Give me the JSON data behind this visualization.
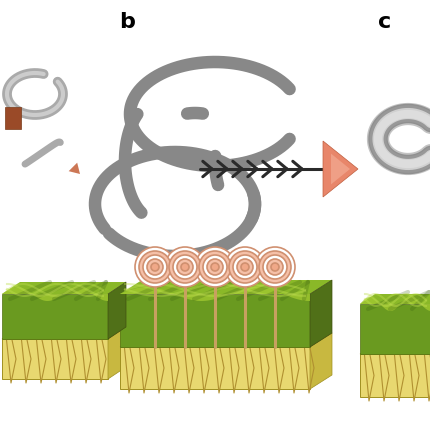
{
  "background_color": "#ffffff",
  "gray_tube_color": "#888888",
  "gray_tube_lw": 9,
  "arrow_color": "#2a2a2a",
  "salmon_color": "#e8866a",
  "salmon_light": "#f5b09a",
  "green_surface_dark": "#5a8020",
  "green_surface_mid": "#7aaa28",
  "green_surface_light": "#c0d840",
  "green_surface_top": "#90c030",
  "yellow_base": "#e8d870",
  "yellow_base_edge": "#b09830",
  "hatch_color": "#b09030",
  "lollipop_stem": "#c8a060",
  "lollipop_ring_color": "#d49080",
  "lollipop_bg": "#ffffff",
  "circle_c_color": "#bbbbbb",
  "circle_c_inner": "#e0e0e0",
  "brown_box": "#a05030",
  "small_arrow_color": "#cc7755"
}
